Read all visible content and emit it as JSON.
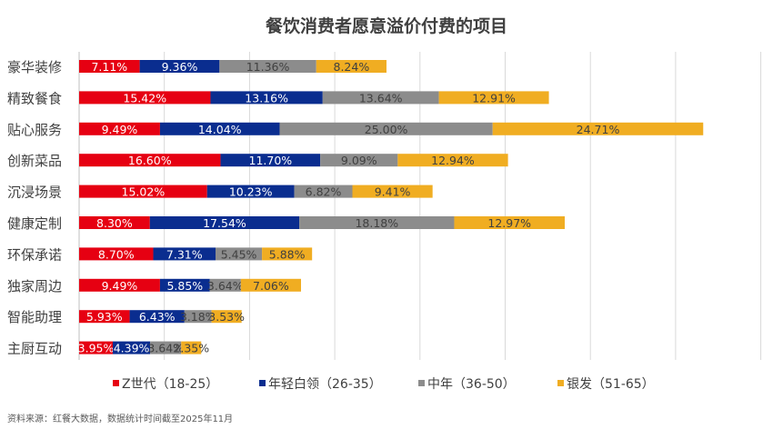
{
  "chart_data": {
    "type": "bar",
    "orientation": "horizontal",
    "stacked": true,
    "title": "餐饮消费者愿意溢价付费的项目",
    "categories": [
      "豪华装修",
      "精致餐食",
      "贴心服务",
      "创新菜品",
      "沉浸场景",
      "健康定制",
      "环保承诺",
      "独家周边",
      "智能助理",
      "主厨互动"
    ],
    "series": [
      {
        "name": "Z世代（18-25）",
        "color": "#e60012",
        "label_color": "#ffffff",
        "values": [
          7.11,
          15.42,
          9.49,
          16.6,
          15.02,
          8.3,
          8.7,
          9.49,
          5.93,
          3.95
        ]
      },
      {
        "name": "年轻白领（26-35）",
        "color": "#0a2d8f",
        "label_color": "#ffffff",
        "values": [
          9.36,
          13.16,
          14.04,
          11.7,
          10.23,
          17.54,
          7.31,
          5.85,
          6.43,
          4.39
        ]
      },
      {
        "name": "中年（36-50）",
        "color": "#8c8c8c",
        "label_color": "#404040",
        "values": [
          11.36,
          13.64,
          25.0,
          9.09,
          6.82,
          18.18,
          5.45,
          3.64,
          3.18,
          3.64
        ]
      },
      {
        "name": "银发（51-65）",
        "color": "#f0ad22",
        "label_color": "#404040",
        "values": [
          8.24,
          12.91,
          24.71,
          12.94,
          9.41,
          12.97,
          5.88,
          7.06,
          3.53,
          2.35
        ]
      }
    ],
    "xlim": [
      0,
      80
    ],
    "grid": true,
    "legend": "bottom",
    "value_format": "percent-2dp"
  },
  "source": "资料来源：红餐大数据，数据统计时间截至2025年11月"
}
